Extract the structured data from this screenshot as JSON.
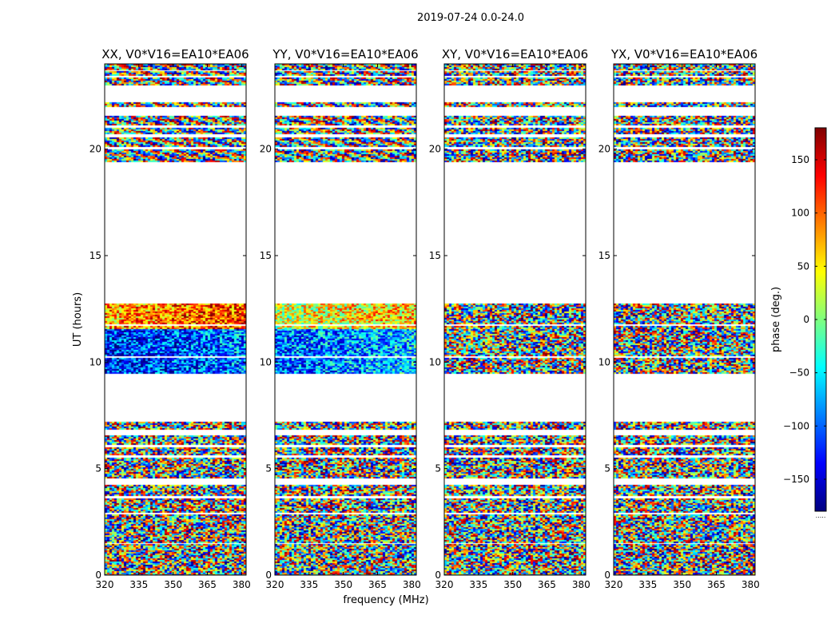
{
  "chart_data": {
    "type": "heatmap",
    "suptitle": "2019-07-24 0.0-24.0",
    "xlabel": "frequency (MHz)",
    "ylabel": "UT (hours)",
    "xlim": [
      320,
      382
    ],
    "ylim": [
      0,
      24
    ],
    "x_ticks": [
      320,
      335,
      350,
      365,
      380
    ],
    "y_ticks": [
      0,
      5,
      10,
      15,
      20
    ],
    "colorbar": {
      "label": "phase (deg.)",
      "range": [
        -180,
        180
      ],
      "ticks": [
        150,
        100,
        50,
        0,
        -50,
        -100,
        -150
      ],
      "colormap": "jet",
      "footer": "....."
    },
    "panels": [
      {
        "title": "XX, V0*V16=EA10*EA06",
        "coherent": true
      },
      {
        "title": "YY, V0*V16=EA10*EA06",
        "coherent": true
      },
      {
        "title": "XY, V0*V16=EA10*EA06",
        "coherent": false
      },
      {
        "title": "YX, V0*V16=EA10*EA06",
        "coherent": false
      }
    ],
    "data_blocks_hours": [
      [
        0.0,
        1.45
      ],
      [
        1.55,
        2.85
      ],
      [
        2.95,
        3.6
      ],
      [
        3.7,
        4.25
      ],
      [
        4.55,
        5.5
      ],
      [
        5.65,
        6.0
      ],
      [
        6.1,
        6.55
      ],
      [
        6.85,
        7.2
      ],
      [
        9.5,
        10.2
      ],
      [
        10.3,
        11.7
      ],
      [
        11.8,
        12.75
      ],
      [
        19.4,
        20.0
      ],
      [
        20.1,
        20.55
      ],
      [
        20.7,
        21.0
      ],
      [
        21.15,
        21.55
      ],
      [
        22.0,
        22.2
      ],
      [
        23.0,
        23.35
      ],
      [
        23.45,
        23.65
      ],
      [
        23.75,
        24.0
      ]
    ]
  }
}
